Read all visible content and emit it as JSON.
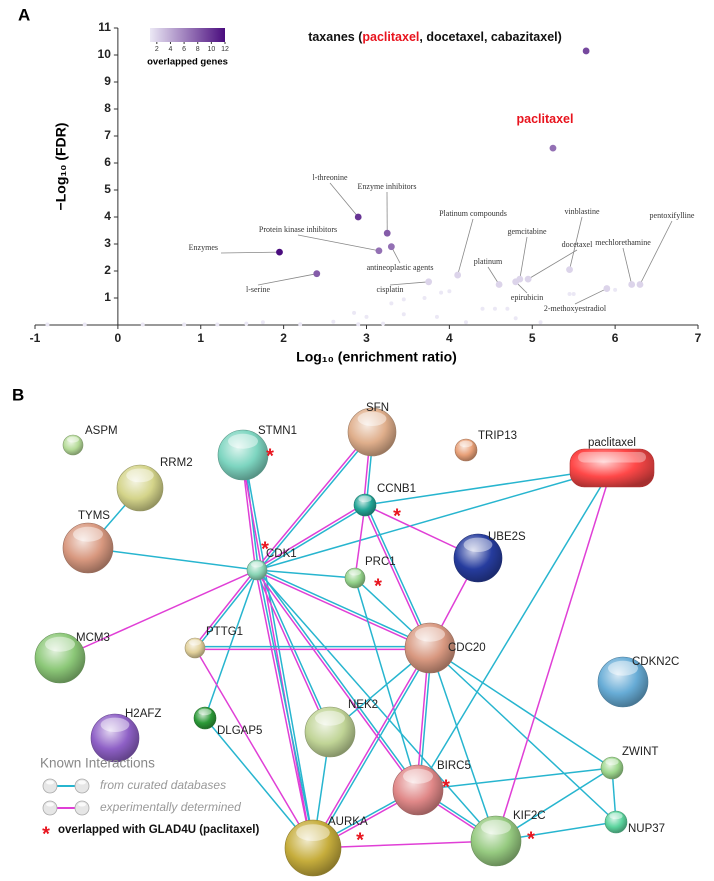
{
  "panel_labels": [
    "A",
    "B"
  ],
  "chart_data": {
    "type": "scatter",
    "x_label": "Log₁₀ (enrichment ratio)",
    "y_label": "−Log₁₀ (FDR)",
    "xlim": [
      -1,
      7
    ],
    "xticks": [
      -1,
      0,
      1,
      2,
      3,
      4,
      5,
      6,
      7
    ],
    "ylim": [
      0,
      11
    ],
    "yticks": [
      1,
      2,
      3,
      4,
      5,
      6,
      7,
      8,
      9,
      10,
      11
    ],
    "highlight_color": "#e8141e",
    "colorbar": {
      "label": "overlapped genes",
      "lim": [
        1,
        12
      ],
      "ticks": [
        2,
        4,
        6,
        8,
        10,
        12
      ],
      "colors": [
        "#ebe8f5",
        "#4a0c7e"
      ]
    },
    "x": [
      5.65,
      5.25,
      1.95,
      2.9,
      3.25,
      3.15,
      3.3,
      2.4,
      4.1,
      4.6,
      4.85,
      4.95,
      4.8,
      3.75,
      5.45,
      6.2,
      6.3,
      5.9,
      1.75,
      1.55,
      2.6,
      2.85,
      3.0,
      3.45,
      3.3,
      3.45,
      3.7,
      3.9,
      4.0,
      3.85,
      4.4,
      4.55,
      4.7,
      4.8,
      5.45,
      5.5,
      6.0,
      -0.85,
      -0.4,
      0.3,
      0.8,
      1.2,
      2.2,
      2.9,
      3.2,
      4.2,
      5.1
    ],
    "y": [
      10.15,
      6.55,
      2.7,
      4.0,
      3.4,
      2.75,
      2.9,
      1.9,
      1.85,
      1.5,
      1.7,
      1.7,
      1.6,
      1.6,
      2.05,
      1.5,
      1.5,
      1.35,
      0.1,
      0.05,
      0.12,
      0.45,
      0.3,
      0.4,
      0.8,
      0.95,
      1.0,
      1.2,
      1.25,
      0.3,
      0.6,
      0.6,
      0.6,
      0.25,
      1.15,
      1.15,
      1.3,
      0.02,
      0.02,
      0.02,
      0.02,
      0.02,
      0.03,
      0.03,
      0.05,
      0.1,
      0.1
    ],
    "genes": [
      9,
      7,
      12,
      10,
      8,
      7,
      7,
      8,
      2,
      2,
      2,
      2,
      2,
      2,
      2,
      2,
      2,
      2,
      1,
      1,
      1,
      1,
      1,
      1,
      1,
      1,
      1,
      1,
      1,
      1,
      1,
      1,
      1,
      1,
      1,
      1,
      1,
      1,
      1,
      1,
      1,
      1,
      1,
      1,
      1,
      1,
      1
    ],
    "labels": [
      [
        {
          "text": "taxanes (",
          "highlight": false
        },
        {
          "text": "paclitaxel",
          "highlight": true
        },
        {
          "text": ", docetaxel, cabazitaxel)",
          "highlight": false
        }
      ],
      [
        {
          "text": "paclitaxel",
          "highlight": true
        }
      ],
      "Enzymes",
      "l-threonine",
      "Enzyme inhibitors",
      "Protein kinase inhibitors",
      "antineoplastic agents",
      "l-serine",
      "Platinum compounds",
      "platinum",
      "gemcitabine",
      "docetaxel",
      "epirubicin",
      "cisplatin",
      "vinblastine",
      "mechlorethamine",
      "pentoxifylline",
      "2-methoxyestradiol",
      null,
      null,
      null,
      null,
      null,
      null,
      null,
      null,
      null,
      null,
      null,
      null,
      null,
      null,
      null,
      null,
      null,
      null,
      null,
      null,
      null,
      null,
      null,
      null,
      null,
      null,
      null,
      null,
      null
    ]
  },
  "network": {
    "edge_colors": {
      "curated": "#27b5cf",
      "experimental": "#e03fd6"
    },
    "star_symbol": "*",
    "star_color": "#e8141e",
    "legend": {
      "title": "Known Interactions",
      "curated": "from curated databases",
      "experimental": "experimentally determined",
      "overlapped": "overlapped with GLAD4U (paclitaxel)"
    },
    "nodes": [
      {
        "label": "ASPM",
        "color": "#b5db98",
        "overlapped": false
      },
      {
        "label": "RRM2",
        "color": "#d4d48a",
        "overlapped": false
      },
      {
        "label": "TYMS",
        "color": "#d8987f",
        "overlapped": false
      },
      {
        "label": "STMN1",
        "color": "#7dd5c0",
        "overlapped": true
      },
      {
        "label": "SFN",
        "color": "#dfae8b",
        "overlapped": false
      },
      {
        "label": "TRIP13",
        "color": "#e8a078",
        "overlapped": false
      },
      {
        "label": "paclitaxel",
        "color": "#ff4848",
        "overlapped": false,
        "shape": "pill"
      },
      {
        "label": "CCNB1",
        "color": "#23a596",
        "overlapped": true
      },
      {
        "label": "CDK1",
        "color": "#8ad6b6",
        "overlapped": true
      },
      {
        "label": "PRC1",
        "color": "#94d28a",
        "overlapped": true
      },
      {
        "label": "UBE2S",
        "color": "#263c9e",
        "overlapped": false
      },
      {
        "label": "MCM3",
        "color": "#8cc878",
        "overlapped": false
      },
      {
        "label": "PTTG1",
        "color": "#e1d09a",
        "overlapped": false
      },
      {
        "label": "CDC20",
        "color": "#d89880",
        "overlapped": false
      },
      {
        "label": "CDKN2C",
        "color": "#67acd6",
        "overlapped": false
      },
      {
        "label": "H2AFZ",
        "color": "#8e60c6",
        "overlapped": false
      },
      {
        "label": "DLGAP5",
        "color": "#2c9a38",
        "overlapped": false
      },
      {
        "label": "NEK2",
        "color": "#c0d496",
        "overlapped": false
      },
      {
        "label": "ZWINT",
        "color": "#9cd68c",
        "overlapped": false
      },
      {
        "label": "BIRC5",
        "color": "#e08888",
        "overlapped": true
      },
      {
        "label": "KIF2C",
        "color": "#96ca80",
        "overlapped": true
      },
      {
        "label": "NUP37",
        "color": "#5cd49e",
        "overlapped": false
      },
      {
        "label": "AURKA",
        "color": "#c6ad3c",
        "overlapped": true
      }
    ],
    "edges": [
      {
        "source": "RRM2",
        "target": "TYMS",
        "type": "curated"
      },
      {
        "source": "TYMS",
        "target": "CDK1",
        "type": "curated"
      },
      {
        "source": "STMN1",
        "target": "CDK1",
        "type": "both"
      },
      {
        "source": "STMN1",
        "target": "AURKA",
        "type": "both"
      },
      {
        "source": "SFN",
        "target": "CDK1",
        "type": "both"
      },
      {
        "source": "SFN",
        "target": "CCNB1",
        "type": "both"
      },
      {
        "source": "CCNB1",
        "target": "paclitaxel",
        "type": "curated"
      },
      {
        "source": "CDK1",
        "target": "paclitaxel",
        "type": "curated"
      },
      {
        "source": "CCNB1",
        "target": "CDK1",
        "type": "both"
      },
      {
        "source": "CCNB1",
        "target": "UBE2S",
        "type": "experimental"
      },
      {
        "source": "CCNB1",
        "target": "CDC20",
        "type": "both"
      },
      {
        "source": "CCNB1",
        "target": "PRC1",
        "type": "experimental"
      },
      {
        "source": "CDK1",
        "target": "PRC1",
        "type": "curated"
      },
      {
        "source": "CDK1",
        "target": "CDC20",
        "type": "both"
      },
      {
        "source": "CDK1",
        "target": "MCM3",
        "type": "experimental"
      },
      {
        "source": "CDK1",
        "target": "PTTG1",
        "type": "both"
      },
      {
        "source": "CDK1",
        "target": "NEK2",
        "type": "both"
      },
      {
        "source": "CDK1",
        "target": "AURKA",
        "type": "both"
      },
      {
        "source": "CDK1",
        "target": "BIRC5",
        "type": "both"
      },
      {
        "source": "CDK1",
        "target": "DLGAP5",
        "type": "curated"
      },
      {
        "source": "CDK1",
        "target": "KIF2C",
        "type": "curated"
      },
      {
        "source": "UBE2S",
        "target": "CDC20",
        "type": "experimental"
      },
      {
        "source": "PTTG1",
        "target": "CDC20",
        "type": "both"
      },
      {
        "source": "PTTG1",
        "target": "AURKA",
        "type": "experimental"
      },
      {
        "source": "PRC1",
        "target": "BIRC5",
        "type": "curated"
      },
      {
        "source": "PRC1",
        "target": "CDC20",
        "type": "curated"
      },
      {
        "source": "CDC20",
        "target": "NEK2",
        "type": "curated"
      },
      {
        "source": "CDC20",
        "target": "AURKA",
        "type": "both"
      },
      {
        "source": "CDC20",
        "target": "BIRC5",
        "type": "both"
      },
      {
        "source": "CDC20",
        "target": "ZWINT",
        "type": "curated"
      },
      {
        "source": "CDC20",
        "target": "KIF2C",
        "type": "curated"
      },
      {
        "source": "CDC20",
        "target": "NUP37",
        "type": "curated"
      },
      {
        "source": "DLGAP5",
        "target": "AURKA",
        "type": "curated"
      },
      {
        "source": "NEK2",
        "target": "AURKA",
        "type": "curated"
      },
      {
        "source": "AURKA",
        "target": "BIRC5",
        "type": "both"
      },
      {
        "source": "AURKA",
        "target": "KIF2C",
        "type": "experimental"
      },
      {
        "source": "BIRC5",
        "target": "ZWINT",
        "type": "curated"
      },
      {
        "source": "BIRC5",
        "target": "KIF2C",
        "type": "both"
      },
      {
        "source": "BIRC5",
        "target": "paclitaxel",
        "type": "curated"
      },
      {
        "source": "KIF2C",
        "target": "paclitaxel",
        "type": "experimental"
      },
      {
        "source": "ZWINT",
        "target": "KIF2C",
        "type": "curated"
      },
      {
        "source": "ZWINT",
        "target": "NUP37",
        "type": "curated"
      },
      {
        "source": "KIF2C",
        "target": "NUP37",
        "type": "curated"
      }
    ]
  }
}
